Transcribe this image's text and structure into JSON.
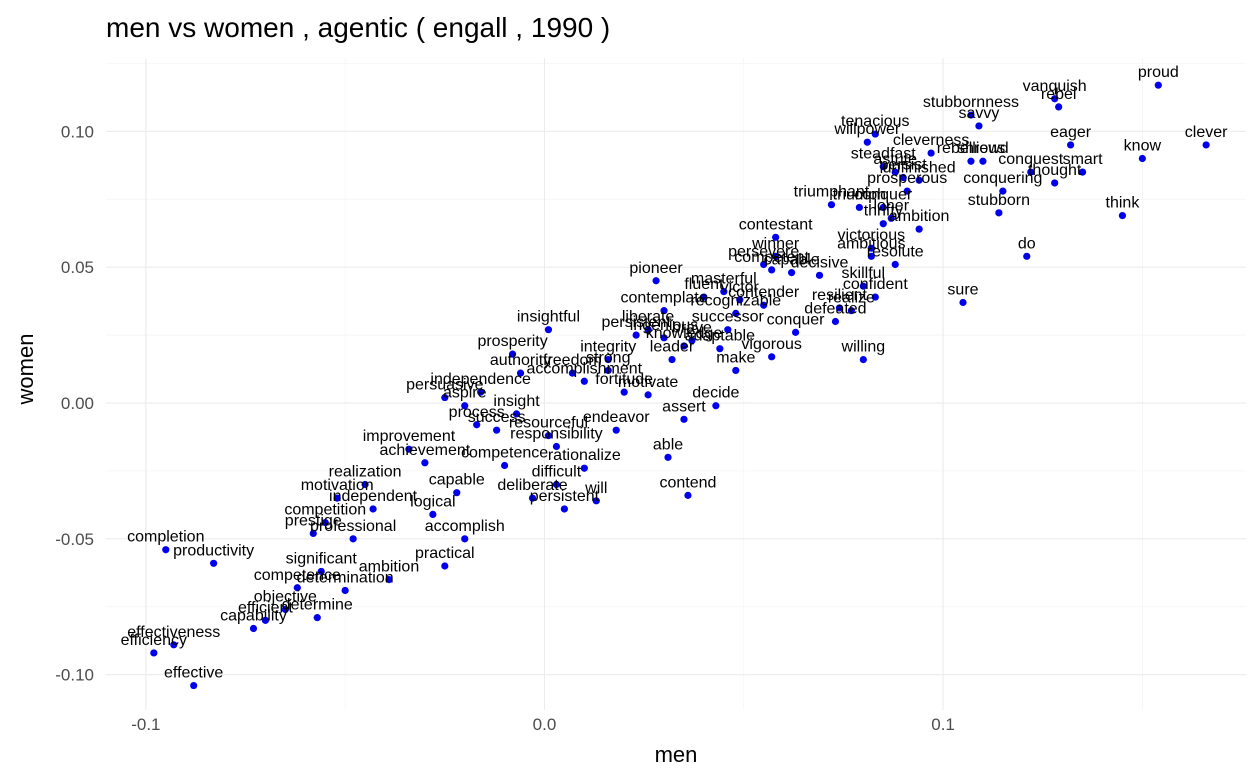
{
  "chart_data": {
    "type": "scatter",
    "title": "men vs women , agentic ( engall , 1990 )",
    "xlabel": "men",
    "ylabel": "women",
    "xlim": [
      -0.11,
      0.176
    ],
    "ylim": [
      -0.113,
      0.127
    ],
    "x_ticks": [
      -0.1,
      0.0,
      0.1
    ],
    "x_tick_labels": [
      "-0.1",
      "0.0",
      "0.1"
    ],
    "y_ticks": [
      -0.1,
      -0.05,
      0.0,
      0.05,
      0.1
    ],
    "y_tick_labels": [
      "-0.10",
      "-0.05",
      "0.00",
      "0.05",
      "0.10"
    ],
    "grid": true,
    "legend": "none",
    "point_color": "#0000ee",
    "points": [
      {
        "label": "proud",
        "x": 0.154,
        "y": 0.117
      },
      {
        "label": "vanquish",
        "x": 0.128,
        "y": 0.112
      },
      {
        "label": "rebel",
        "x": 0.129,
        "y": 0.109
      },
      {
        "label": "stubbornness",
        "x": 0.107,
        "y": 0.106
      },
      {
        "label": "savvy",
        "x": 0.109,
        "y": 0.102
      },
      {
        "label": "clever",
        "x": 0.166,
        "y": 0.095
      },
      {
        "label": "eager",
        "x": 0.132,
        "y": 0.095
      },
      {
        "label": "tenacious",
        "x": 0.083,
        "y": 0.099
      },
      {
        "label": "willpower",
        "x": 0.081,
        "y": 0.096
      },
      {
        "label": "cleverness",
        "x": 0.097,
        "y": 0.092
      },
      {
        "label": "rebellious",
        "x": 0.107,
        "y": 0.089
      },
      {
        "label": "shrewd",
        "x": 0.11,
        "y": 0.089
      },
      {
        "label": "know",
        "x": 0.15,
        "y": 0.09
      },
      {
        "label": "conquest",
        "x": 0.122,
        "y": 0.085
      },
      {
        "label": "smart",
        "x": 0.135,
        "y": 0.085
      },
      {
        "label": "thought",
        "x": 0.128,
        "y": 0.081
      },
      {
        "label": "conquering",
        "x": 0.115,
        "y": 0.078
      },
      {
        "label": "steadfast",
        "x": 0.085,
        "y": 0.087
      },
      {
        "label": "astute",
        "x": 0.088,
        "y": 0.085
      },
      {
        "label": "persist",
        "x": 0.09,
        "y": 0.083
      },
      {
        "label": "unfinished",
        "x": 0.094,
        "y": 0.082
      },
      {
        "label": "prosperous",
        "x": 0.091,
        "y": 0.078
      },
      {
        "label": "triumphant",
        "x": 0.072,
        "y": 0.073
      },
      {
        "label": "triumph",
        "x": 0.079,
        "y": 0.072
      },
      {
        "label": "stubborn",
        "x": 0.114,
        "y": 0.07
      },
      {
        "label": "think",
        "x": 0.145,
        "y": 0.069
      },
      {
        "label": "conquer",
        "x": 0.085,
        "y": 0.072
      },
      {
        "label": "loner",
        "x": 0.087,
        "y": 0.068
      },
      {
        "label": "thrifty",
        "x": 0.085,
        "y": 0.066
      },
      {
        "label": "ambition",
        "x": 0.094,
        "y": 0.064
      },
      {
        "label": "contestant",
        "x": 0.058,
        "y": 0.061
      },
      {
        "label": "do",
        "x": 0.121,
        "y": 0.054
      },
      {
        "label": "victorious",
        "x": 0.082,
        "y": 0.057
      },
      {
        "label": "winner",
        "x": 0.058,
        "y": 0.054
      },
      {
        "label": "ambitious",
        "x": 0.082,
        "y": 0.054
      },
      {
        "label": "persevere",
        "x": 0.055,
        "y": 0.051
      },
      {
        "label": "resolute",
        "x": 0.088,
        "y": 0.051
      },
      {
        "label": "competent",
        "x": 0.057,
        "y": 0.049
      },
      {
        "label": "capable",
        "x": 0.062,
        "y": 0.048
      },
      {
        "label": "decisive",
        "x": 0.069,
        "y": 0.047
      },
      {
        "label": "pioneer",
        "x": 0.028,
        "y": 0.045
      },
      {
        "label": "skillful",
        "x": 0.08,
        "y": 0.043
      },
      {
        "label": "masterful",
        "x": 0.045,
        "y": 0.041
      },
      {
        "label": "fluent",
        "x": 0.04,
        "y": 0.039
      },
      {
        "label": "victor",
        "x": 0.049,
        "y": 0.038
      },
      {
        "label": "confident",
        "x": 0.083,
        "y": 0.039
      },
      {
        "label": "sure",
        "x": 0.105,
        "y": 0.037
      },
      {
        "label": "contender",
        "x": 0.055,
        "y": 0.036
      },
      {
        "label": "resilient",
        "x": 0.074,
        "y": 0.035
      },
      {
        "label": "realize",
        "x": 0.077,
        "y": 0.034
      },
      {
        "label": "contemplate",
        "x": 0.03,
        "y": 0.034
      },
      {
        "label": "recognizable",
        "x": 0.048,
        "y": 0.033
      },
      {
        "label": "defeated",
        "x": 0.073,
        "y": 0.03
      },
      {
        "label": "insightful",
        "x": 0.001,
        "y": 0.027
      },
      {
        "label": "liberate",
        "x": 0.026,
        "y": 0.027
      },
      {
        "label": "successor",
        "x": 0.046,
        "y": 0.027
      },
      {
        "label": "conquer",
        "x": 0.063,
        "y": 0.026
      },
      {
        "label": "persistent",
        "x": 0.023,
        "y": 0.025
      },
      {
        "label": "ingenious",
        "x": 0.03,
        "y": 0.024
      },
      {
        "label": "brave",
        "x": 0.037,
        "y": 0.023
      },
      {
        "label": "knowledge",
        "x": 0.035,
        "y": 0.021
      },
      {
        "label": "adaptable",
        "x": 0.044,
        "y": 0.02
      },
      {
        "label": "prosperity",
        "x": -0.008,
        "y": 0.018
      },
      {
        "label": "willing",
        "x": 0.08,
        "y": 0.016
      },
      {
        "label": "vigorous",
        "x": 0.057,
        "y": 0.017
      },
      {
        "label": "integrity",
        "x": 0.016,
        "y": 0.016
      },
      {
        "label": "leader",
        "x": 0.032,
        "y": 0.016
      },
      {
        "label": "make",
        "x": 0.048,
        "y": 0.012
      },
      {
        "label": "authority",
        "x": -0.006,
        "y": 0.011
      },
      {
        "label": "freedom",
        "x": 0.007,
        "y": 0.011
      },
      {
        "label": "strong",
        "x": 0.016,
        "y": 0.012
      },
      {
        "label": "accomplishment",
        "x": 0.01,
        "y": 0.008
      },
      {
        "label": "independence",
        "x": -0.016,
        "y": 0.004
      },
      {
        "label": "fortitude",
        "x": 0.02,
        "y": 0.004
      },
      {
        "label": "motivate",
        "x": 0.026,
        "y": 0.003
      },
      {
        "label": "persuasive",
        "x": -0.025,
        "y": 0.002
      },
      {
        "label": "aspire",
        "x": -0.02,
        "y": -0.001
      },
      {
        "label": "decide",
        "x": 0.043,
        "y": -0.001
      },
      {
        "label": "insight",
        "x": -0.007,
        "y": -0.004
      },
      {
        "label": "assert",
        "x": 0.035,
        "y": -0.006
      },
      {
        "label": "process",
        "x": -0.017,
        "y": -0.008
      },
      {
        "label": "success",
        "x": -0.012,
        "y": -0.01
      },
      {
        "label": "endeavor",
        "x": 0.018,
        "y": -0.01
      },
      {
        "label": "resourceful",
        "x": 0.001,
        "y": -0.012
      },
      {
        "label": "able",
        "x": 0.031,
        "y": -0.02
      },
      {
        "label": "improvement",
        "x": -0.034,
        "y": -0.017
      },
      {
        "label": "responsibility",
        "x": 0.003,
        "y": -0.016
      },
      {
        "label": "achievement",
        "x": -0.03,
        "y": -0.022
      },
      {
        "label": "competence",
        "x": -0.01,
        "y": -0.023
      },
      {
        "label": "rationalize",
        "x": 0.01,
        "y": -0.024
      },
      {
        "label": "contend",
        "x": 0.036,
        "y": -0.034
      },
      {
        "label": "difficult",
        "x": 0.003,
        "y": -0.03
      },
      {
        "label": "realization",
        "x": -0.045,
        "y": -0.03
      },
      {
        "label": "motivation",
        "x": -0.052,
        "y": -0.035
      },
      {
        "label": "capable",
        "x": -0.022,
        "y": -0.033
      },
      {
        "label": "deliberate",
        "x": -0.003,
        "y": -0.035
      },
      {
        "label": "will",
        "x": 0.013,
        "y": -0.036
      },
      {
        "label": "independent",
        "x": -0.043,
        "y": -0.039
      },
      {
        "label": "logical",
        "x": -0.028,
        "y": -0.041
      },
      {
        "label": "persistent",
        "x": 0.005,
        "y": -0.039
      },
      {
        "label": "competition",
        "x": -0.055,
        "y": -0.044
      },
      {
        "label": "prestige",
        "x": -0.058,
        "y": -0.048
      },
      {
        "label": "professional",
        "x": -0.048,
        "y": -0.05
      },
      {
        "label": "accomplish",
        "x": -0.02,
        "y": -0.05
      },
      {
        "label": "completion",
        "x": -0.095,
        "y": -0.054
      },
      {
        "label": "productivity",
        "x": -0.083,
        "y": -0.059
      },
      {
        "label": "practical",
        "x": -0.025,
        "y": -0.06
      },
      {
        "label": "significant",
        "x": -0.056,
        "y": -0.062
      },
      {
        "label": "ambition",
        "x": -0.039,
        "y": -0.065
      },
      {
        "label": "competence",
        "x": -0.062,
        "y": -0.068
      },
      {
        "label": "determination",
        "x": -0.05,
        "y": -0.069
      },
      {
        "label": "objective",
        "x": -0.065,
        "y": -0.076
      },
      {
        "label": "determine",
        "x": -0.057,
        "y": -0.079
      },
      {
        "label": "efficient",
        "x": -0.07,
        "y": -0.08
      },
      {
        "label": "capability",
        "x": -0.073,
        "y": -0.083
      },
      {
        "label": "effectiveness",
        "x": -0.093,
        "y": -0.089
      },
      {
        "label": "efficiency",
        "x": -0.098,
        "y": -0.092
      },
      {
        "label": "effective",
        "x": -0.088,
        "y": -0.104
      }
    ]
  }
}
